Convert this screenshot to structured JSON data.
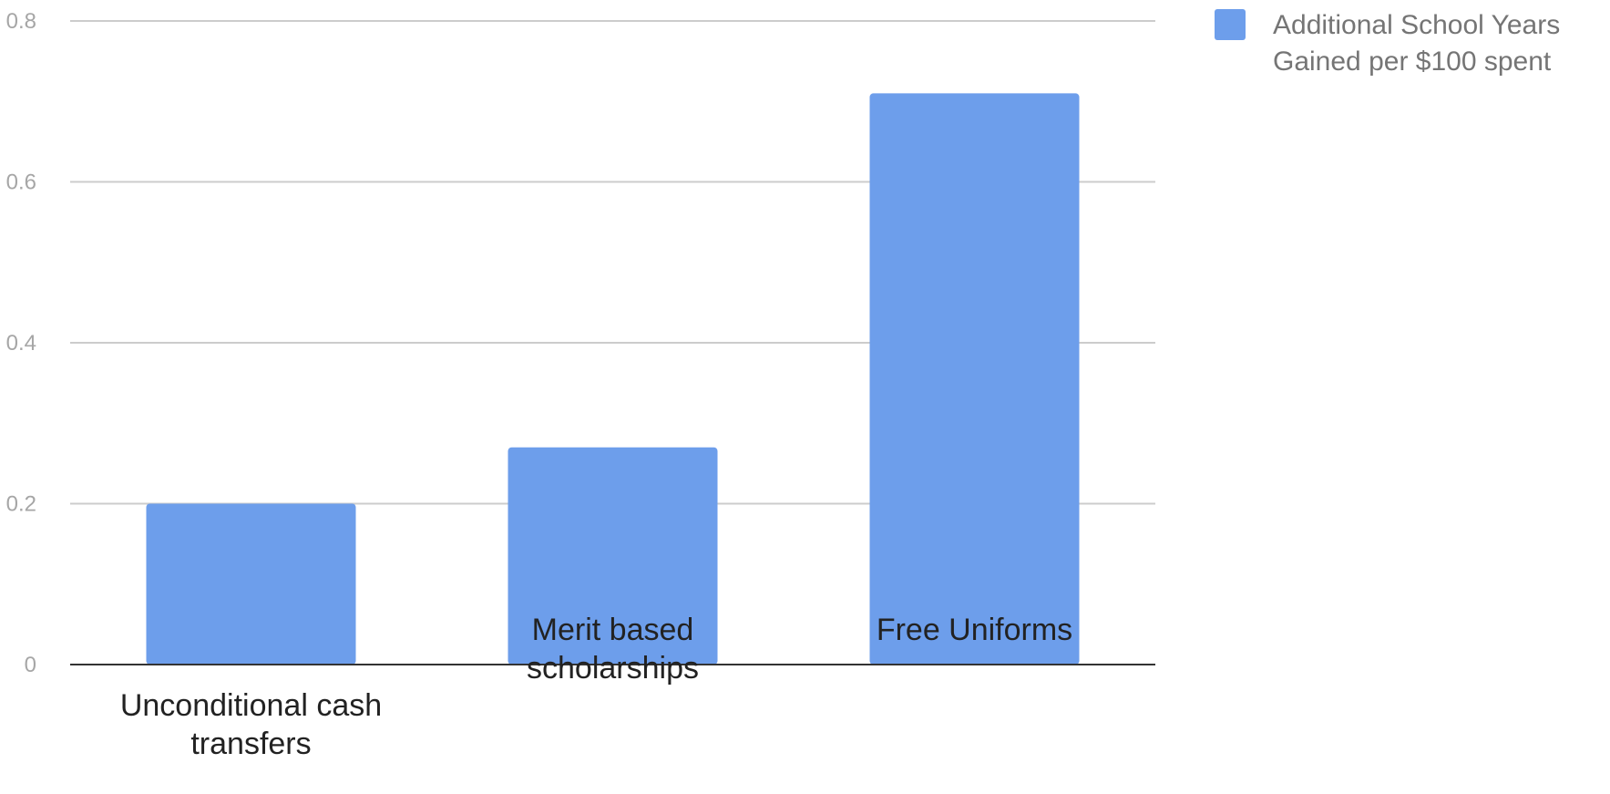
{
  "chart_data": {
    "type": "bar",
    "categories": [
      [
        "Unconditional cash",
        "transfers"
      ],
      [
        "Merit based",
        "scholarships"
      ],
      [
        "Free Uniforms"
      ]
    ],
    "series": [
      {
        "name": "Additional School Years Gained per $100 spent",
        "name_lines": [
          "Additional School Years",
          "Gained per $100 spent"
        ],
        "values": [
          0.2,
          0.27,
          0.71
        ],
        "color": "#6d9eeb"
      }
    ],
    "ylim": [
      0,
      0.8
    ],
    "yticks": [
      {
        "value": 0,
        "label": "0"
      },
      {
        "value": 0.2,
        "label": "0.2"
      },
      {
        "value": 0.4,
        "label": "0.4"
      },
      {
        "value": 0.6,
        "label": "0.6"
      },
      {
        "value": 0.8,
        "label": "0.8"
      }
    ],
    "grid": true,
    "legend": "top-right",
    "title": "",
    "xlabel": "",
    "ylabel": ""
  }
}
